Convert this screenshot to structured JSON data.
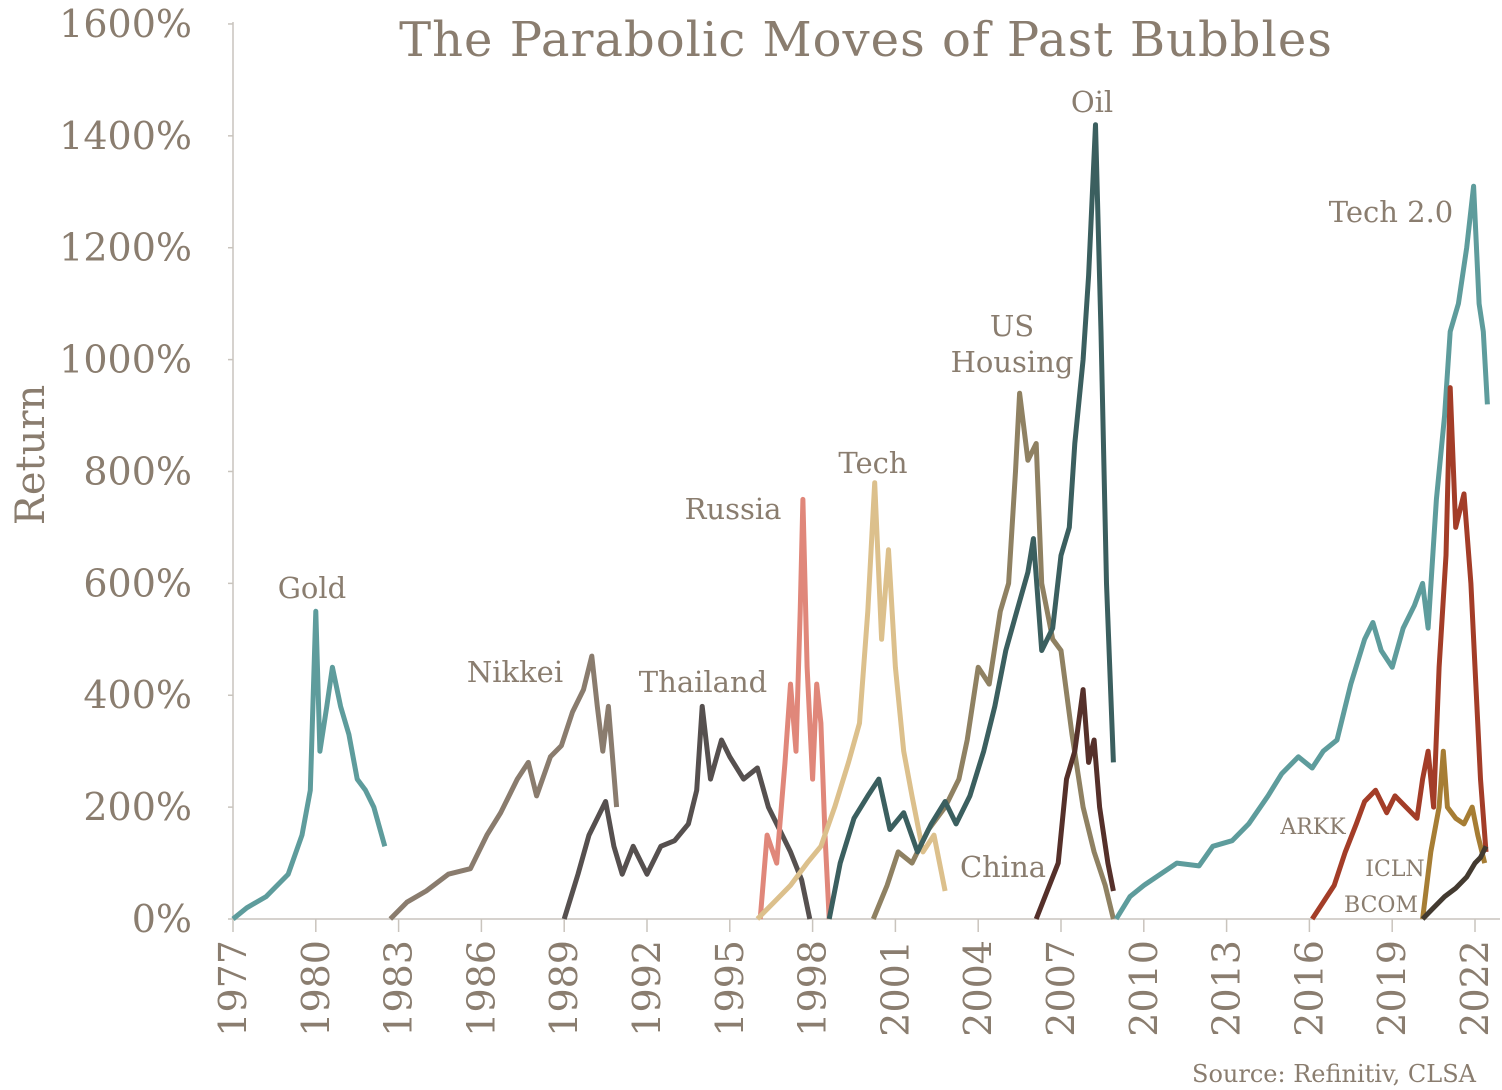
{
  "chart_data": {
    "type": "line",
    "title": "The Parabolic Moves of Past Bubbles",
    "xlabel": "",
    "ylabel": "Return",
    "source": "Source: Refinitiv, CLSA",
    "xlim": [
      1977,
      2023
    ],
    "ylim": [
      0,
      1600
    ],
    "x_ticks": [
      "1977",
      "1980",
      "1983",
      "1986",
      "1989",
      "1992",
      "1995",
      "1998",
      "2001",
      "2004",
      "2007",
      "2010",
      "2013",
      "2016",
      "2019",
      "2022"
    ],
    "y_ticks": [
      "0%",
      "200%",
      "400%",
      "600%",
      "800%",
      "1000%",
      "1200%",
      "1400%",
      "1600%"
    ],
    "grid": false,
    "series": [
      {
        "name": "Gold",
        "color": "#5e9c9c",
        "points": [
          [
            1977.0,
            0
          ],
          [
            1977.5,
            20
          ],
          [
            1978.2,
            40
          ],
          [
            1979.0,
            80
          ],
          [
            1979.5,
            150
          ],
          [
            1979.8,
            230
          ],
          [
            1980.0,
            550
          ],
          [
            1980.15,
            300
          ],
          [
            1980.4,
            380
          ],
          [
            1980.6,
            450
          ],
          [
            1980.9,
            380
          ],
          [
            1981.2,
            330
          ],
          [
            1981.5,
            250
          ],
          [
            1981.8,
            230
          ],
          [
            1982.1,
            200
          ],
          [
            1982.5,
            130
          ]
        ]
      },
      {
        "name": "Nikkei",
        "color": "#8a7c6e",
        "points": [
          [
            1982.7,
            0
          ],
          [
            1983.3,
            30
          ],
          [
            1984.0,
            50
          ],
          [
            1984.8,
            80
          ],
          [
            1985.6,
            90
          ],
          [
            1986.2,
            150
          ],
          [
            1986.7,
            190
          ],
          [
            1987.3,
            250
          ],
          [
            1987.7,
            280
          ],
          [
            1988.0,
            220
          ],
          [
            1988.5,
            290
          ],
          [
            1988.9,
            310
          ],
          [
            1989.3,
            370
          ],
          [
            1989.7,
            410
          ],
          [
            1990.0,
            470
          ],
          [
            1990.2,
            380
          ],
          [
            1990.4,
            300
          ],
          [
            1990.6,
            380
          ],
          [
            1990.9,
            200
          ]
        ]
      },
      {
        "name": "Thailand",
        "color": "#56504f",
        "points": [
          [
            1989.0,
            0
          ],
          [
            1989.5,
            80
          ],
          [
            1989.9,
            150
          ],
          [
            1990.5,
            210
          ],
          [
            1990.8,
            130
          ],
          [
            1991.1,
            80
          ],
          [
            1991.5,
            130
          ],
          [
            1992.0,
            80
          ],
          [
            1992.5,
            130
          ],
          [
            1993.0,
            140
          ],
          [
            1993.5,
            170
          ],
          [
            1993.8,
            230
          ],
          [
            1994.0,
            380
          ],
          [
            1994.3,
            250
          ],
          [
            1994.7,
            320
          ],
          [
            1995.0,
            290
          ],
          [
            1995.5,
            250
          ],
          [
            1996.0,
            270
          ],
          [
            1996.4,
            200
          ],
          [
            1996.8,
            160
          ],
          [
            1997.2,
            120
          ],
          [
            1997.6,
            70
          ],
          [
            1997.9,
            0
          ]
        ]
      },
      {
        "name": "Russia",
        "color": "#e0877a",
        "points": [
          [
            1996.1,
            0
          ],
          [
            1996.35,
            150
          ],
          [
            1996.7,
            100
          ],
          [
            1997.0,
            280
          ],
          [
            1997.2,
            420
          ],
          [
            1997.4,
            300
          ],
          [
            1997.55,
            550
          ],
          [
            1997.65,
            750
          ],
          [
            1997.8,
            450
          ],
          [
            1998.0,
            250
          ],
          [
            1998.15,
            420
          ],
          [
            1998.3,
            350
          ],
          [
            1998.45,
            150
          ],
          [
            1998.6,
            0
          ]
        ]
      },
      {
        "name": "Tech",
        "color": "#dcc08c",
        "points": [
          [
            1996.0,
            0
          ],
          [
            1996.6,
            30
          ],
          [
            1997.2,
            60
          ],
          [
            1997.8,
            100
          ],
          [
            1998.3,
            130
          ],
          [
            1998.8,
            200
          ],
          [
            1999.3,
            280
          ],
          [
            1999.7,
            350
          ],
          [
            2000.0,
            550
          ],
          [
            2000.25,
            780
          ],
          [
            2000.5,
            500
          ],
          [
            2000.75,
            660
          ],
          [
            2001.0,
            450
          ],
          [
            2001.3,
            300
          ],
          [
            2001.6,
            220
          ],
          [
            2002.0,
            120
          ],
          [
            2002.4,
            150
          ],
          [
            2002.8,
            50
          ]
        ]
      },
      {
        "name": "US Housing",
        "color": "#8f8162",
        "points": [
          [
            2000.2,
            0
          ],
          [
            2000.7,
            60
          ],
          [
            2001.1,
            120
          ],
          [
            2001.6,
            100
          ],
          [
            2002.2,
            160
          ],
          [
            2002.8,
            200
          ],
          [
            2003.3,
            250
          ],
          [
            2003.6,
            320
          ],
          [
            2004.0,
            450
          ],
          [
            2004.4,
            420
          ],
          [
            2004.8,
            550
          ],
          [
            2005.1,
            600
          ],
          [
            2005.35,
            800
          ],
          [
            2005.5,
            940
          ],
          [
            2005.8,
            820
          ],
          [
            2006.1,
            850
          ],
          [
            2006.3,
            600
          ],
          [
            2006.7,
            500
          ],
          [
            2007.0,
            480
          ],
          [
            2007.4,
            330
          ],
          [
            2007.8,
            200
          ],
          [
            2008.2,
            120
          ],
          [
            2008.6,
            60
          ],
          [
            2008.9,
            0
          ]
        ]
      },
      {
        "name": "Oil",
        "color": "#3b5f5f",
        "points": [
          [
            1998.6,
            0
          ],
          [
            1999.0,
            100
          ],
          [
            1999.5,
            180
          ],
          [
            2000.0,
            220
          ],
          [
            2000.4,
            250
          ],
          [
            2000.8,
            160
          ],
          [
            2001.3,
            190
          ],
          [
            2001.8,
            120
          ],
          [
            2002.3,
            170
          ],
          [
            2002.8,
            210
          ],
          [
            2003.2,
            170
          ],
          [
            2003.7,
            220
          ],
          [
            2004.2,
            300
          ],
          [
            2004.6,
            380
          ],
          [
            2005.0,
            480
          ],
          [
            2005.4,
            550
          ],
          [
            2005.8,
            620
          ],
          [
            2006.0,
            680
          ],
          [
            2006.3,
            480
          ],
          [
            2006.7,
            520
          ],
          [
            2007.0,
            650
          ],
          [
            2007.3,
            700
          ],
          [
            2007.5,
            850
          ],
          [
            2007.8,
            1000
          ],
          [
            2008.0,
            1150
          ],
          [
            2008.25,
            1420
          ],
          [
            2008.45,
            1050
          ],
          [
            2008.65,
            600
          ],
          [
            2008.9,
            280
          ]
        ]
      },
      {
        "name": "China",
        "color": "#55302a",
        "points": [
          [
            2006.1,
            0
          ],
          [
            2006.5,
            50
          ],
          [
            2006.9,
            100
          ],
          [
            2007.2,
            250
          ],
          [
            2007.5,
            300
          ],
          [
            2007.8,
            410
          ],
          [
            2008.0,
            280
          ],
          [
            2008.2,
            320
          ],
          [
            2008.4,
            200
          ],
          [
            2008.7,
            100
          ],
          [
            2008.9,
            50
          ]
        ]
      },
      {
        "name": "Tech 2.0",
        "color": "#5e9c9c",
        "points": [
          [
            2009.0,
            0
          ],
          [
            2009.5,
            40
          ],
          [
            2010.0,
            60
          ],
          [
            2010.6,
            80
          ],
          [
            2011.2,
            100
          ],
          [
            2012.0,
            95
          ],
          [
            2012.5,
            130
          ],
          [
            2013.2,
            140
          ],
          [
            2013.8,
            170
          ],
          [
            2014.5,
            220
          ],
          [
            2015.0,
            260
          ],
          [
            2015.6,
            290
          ],
          [
            2016.1,
            270
          ],
          [
            2016.5,
            300
          ],
          [
            2017.0,
            320
          ],
          [
            2017.5,
            420
          ],
          [
            2018.0,
            500
          ],
          [
            2018.3,
            530
          ],
          [
            2018.6,
            480
          ],
          [
            2019.0,
            450
          ],
          [
            2019.4,
            520
          ],
          [
            2019.8,
            560
          ],
          [
            2020.1,
            600
          ],
          [
            2020.3,
            520
          ],
          [
            2020.6,
            750
          ],
          [
            2020.9,
            900
          ],
          [
            2021.1,
            1050
          ],
          [
            2021.4,
            1100
          ],
          [
            2021.7,
            1200
          ],
          [
            2021.95,
            1310
          ],
          [
            2022.15,
            1100
          ],
          [
            2022.3,
            1050
          ],
          [
            2022.45,
            920
          ]
        ]
      },
      {
        "name": "ARKK",
        "color": "#a33d28",
        "points": [
          [
            2016.1,
            0
          ],
          [
            2016.5,
            30
          ],
          [
            2016.9,
            60
          ],
          [
            2017.3,
            120
          ],
          [
            2017.7,
            170
          ],
          [
            2018.0,
            210
          ],
          [
            2018.4,
            230
          ],
          [
            2018.8,
            190
          ],
          [
            2019.1,
            220
          ],
          [
            2019.5,
            200
          ],
          [
            2019.9,
            180
          ],
          [
            2020.1,
            250
          ],
          [
            2020.3,
            300
          ],
          [
            2020.5,
            200
          ],
          [
            2020.7,
            450
          ],
          [
            2020.95,
            650
          ],
          [
            2021.1,
            950
          ],
          [
            2021.3,
            700
          ],
          [
            2021.6,
            760
          ],
          [
            2021.85,
            600
          ],
          [
            2022.0,
            450
          ],
          [
            2022.2,
            250
          ],
          [
            2022.4,
            120
          ]
        ]
      },
      {
        "name": "ICLN",
        "color": "#a67d34",
        "points": [
          [
            2020.1,
            0
          ],
          [
            2020.4,
            120
          ],
          [
            2020.7,
            200
          ],
          [
            2020.85,
            300
          ],
          [
            2021.0,
            200
          ],
          [
            2021.3,
            180
          ],
          [
            2021.6,
            170
          ],
          [
            2021.9,
            200
          ],
          [
            2022.1,
            150
          ],
          [
            2022.35,
            100
          ]
        ]
      },
      {
        "name": "BCOM",
        "color": "#433a30",
        "points": [
          [
            2020.1,
            0
          ],
          [
            2020.5,
            20
          ],
          [
            2020.9,
            40
          ],
          [
            2021.3,
            55
          ],
          [
            2021.7,
            75
          ],
          [
            2022.0,
            100
          ],
          [
            2022.2,
            110
          ],
          [
            2022.4,
            130
          ]
        ]
      }
    ]
  }
}
